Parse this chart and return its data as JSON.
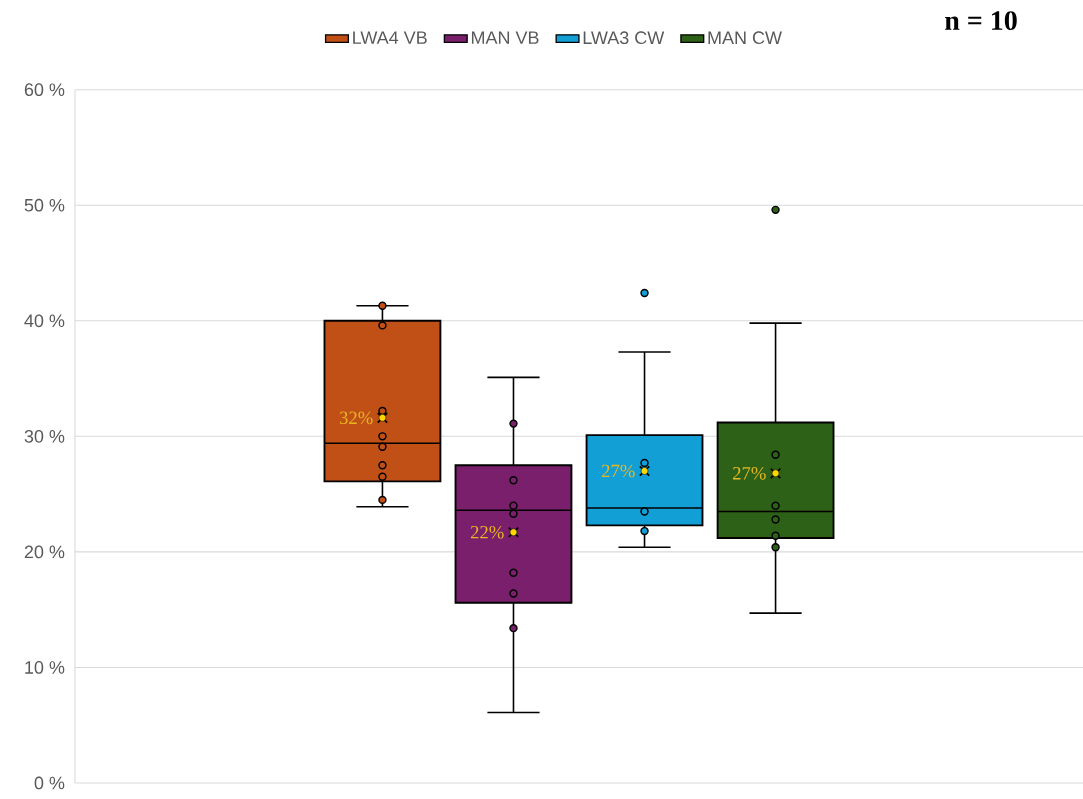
{
  "chart_data": {
    "type": "box",
    "categories": [
      null
    ],
    "legend": "top",
    "grid": "y",
    "ylim": [
      0,
      60
    ],
    "yticks": [
      {
        "value": 0,
        "label": "0 %"
      },
      {
        "value": 10,
        "label": "10 %"
      },
      {
        "value": 20,
        "label": "20 %"
      },
      {
        "value": 30,
        "label": "30 %"
      },
      {
        "value": 40,
        "label": "40 %"
      },
      {
        "value": 50,
        "label": "50 %"
      },
      {
        "value": 60,
        "label": "60 %"
      }
    ],
    "annotations": [
      "n = 10"
    ],
    "series": [
      {
        "name": "LWA4 VB",
        "color": "#c05016",
        "value_labels": [
          "32%"
        ],
        "boxes": [
          {
            "low": 23.9,
            "q1": 26.1,
            "median": 29.4,
            "q3": 40.0,
            "high": 41.3,
            "mean": 31.6,
            "outliers": [
              41.3,
              39.6,
              32.2,
              30.0,
              29.1,
              27.5,
              26.5,
              24.5
            ]
          }
        ]
      },
      {
        "name": "MAN VB",
        "color": "#7a1f6b",
        "value_labels": [
          "22%"
        ],
        "boxes": [
          {
            "low": 6.1,
            "q1": 15.6,
            "median": 23.6,
            "q3": 27.5,
            "high": 35.1,
            "mean": 21.7,
            "outliers": [
              31.1,
              26.2,
              24.0,
              23.3,
              18.2,
              16.4,
              13.4
            ]
          }
        ]
      },
      {
        "name": "LWA3 CW",
        "color": "#129fd6",
        "value_labels": [
          "27%"
        ],
        "boxes": [
          {
            "low": 20.4,
            "q1": 22.3,
            "median": 23.8,
            "q3": 30.1,
            "high": 37.3,
            "mean": 27.0,
            "outliers": [
              42.4,
              27.7,
              23.5,
              21.8
            ]
          }
        ]
      },
      {
        "name": "MAN CW",
        "color": "#2e6118",
        "value_labels": [
          "27%"
        ],
        "boxes": [
          {
            "low": 14.7,
            "q1": 21.2,
            "median": 23.5,
            "q3": 31.2,
            "high": 39.8,
            "mean": 26.8,
            "outliers": [
              49.6,
              28.4,
              24.0,
              22.8,
              21.4,
              20.4
            ]
          }
        ]
      }
    ]
  }
}
